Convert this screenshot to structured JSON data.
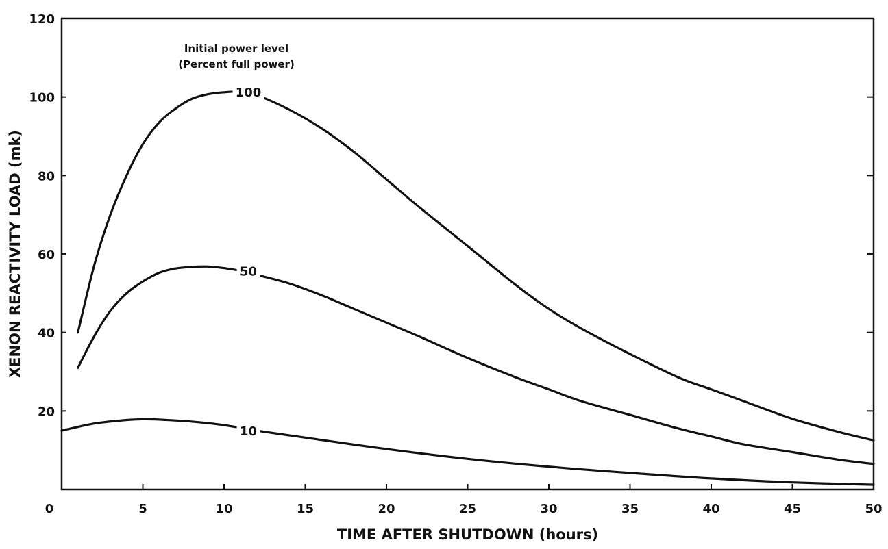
{
  "chart_data": {
    "type": "line",
    "xlabel": "TIME AFTER SHUTDOWN (hours)",
    "ylabel": "XENON REACTIVITY LOAD (mk)",
    "xlim": [
      0,
      50
    ],
    "ylim": [
      0,
      120
    ],
    "xticks": [
      0,
      5,
      10,
      15,
      20,
      25,
      30,
      35,
      40,
      45,
      50
    ],
    "yticks": [
      20,
      40,
      60,
      80,
      100,
      120
    ],
    "grid": false,
    "legend_title": [
      "Initial power level",
      "(Percent full power)"
    ],
    "series": [
      {
        "name": "100",
        "x": [
          1,
          2,
          3,
          4,
          5,
          6,
          7,
          8,
          9,
          10,
          11,
          12,
          14,
          16,
          18,
          20,
          22,
          25,
          28,
          30,
          32,
          35,
          38,
          40,
          42,
          45,
          48,
          50
        ],
        "y": [
          40,
          57,
          70,
          80,
          88,
          93.5,
          97,
          99.5,
          100.7,
          101.2,
          101.3,
          100.5,
          96.8,
          92,
          86,
          79,
          72,
          62,
          52,
          46,
          41,
          34.5,
          28.5,
          25.5,
          22.5,
          18,
          14.5,
          12.5
        ]
      },
      {
        "name": "50",
        "x": [
          1,
          2,
          3,
          4,
          5,
          6,
          7,
          8,
          9,
          10,
          11,
          12,
          14,
          16,
          18,
          20,
          22,
          25,
          28,
          30,
          32,
          35,
          38,
          40,
          42,
          45,
          48,
          50
        ],
        "y": [
          31,
          39,
          45.5,
          50,
          53,
          55.2,
          56.3,
          56.7,
          56.8,
          56.4,
          55.7,
          54.7,
          52.5,
          49.5,
          46,
          42.5,
          39,
          33.5,
          28.5,
          25.5,
          22.5,
          19,
          15.5,
          13.5,
          11.5,
          9.5,
          7.5,
          6.5
        ]
      },
      {
        "name": "10",
        "x": [
          0,
          2,
          4,
          5,
          6,
          8,
          10,
          12,
          15,
          20,
          25,
          30,
          35,
          40,
          45,
          50
        ],
        "y": [
          15,
          16.8,
          17.7,
          17.9,
          17.8,
          17.3,
          16.4,
          15,
          13.2,
          10.3,
          7.8,
          5.8,
          4.2,
          2.8,
          1.8,
          1.2
        ]
      }
    ]
  }
}
